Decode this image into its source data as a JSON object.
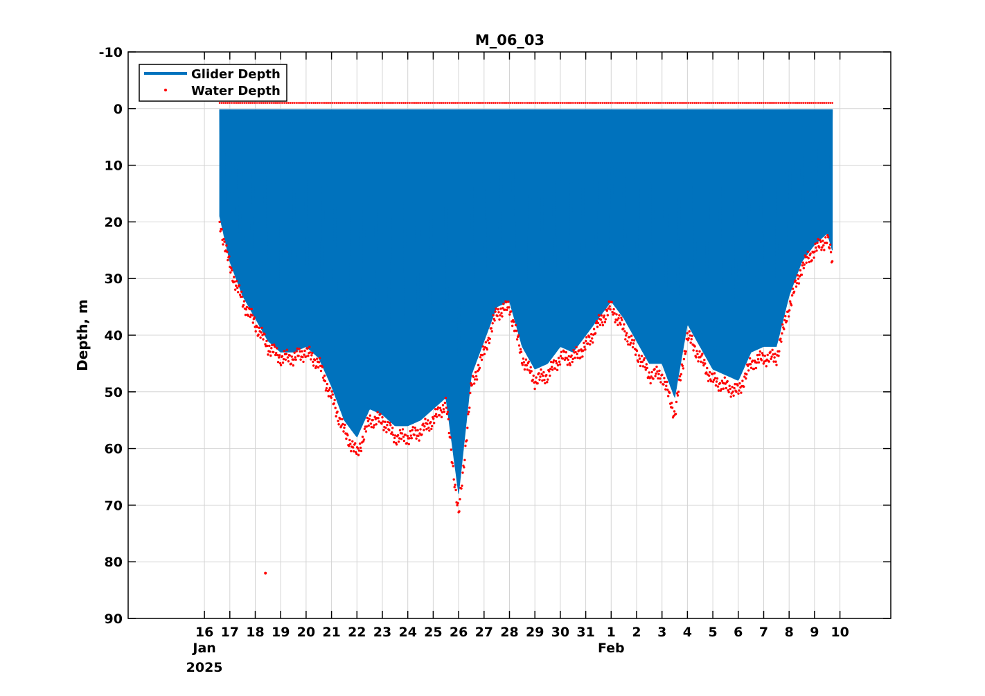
{
  "chart_data": {
    "type": "line",
    "title": "M_06_03",
    "ylabel": "Depth, m",
    "xlabel": "",
    "y_reversed": true,
    "ylim": [
      -10,
      90
    ],
    "yticks": [
      -10,
      0,
      10,
      20,
      30,
      40,
      50,
      60,
      70,
      80,
      90
    ],
    "xlim": [
      "2025-01-13",
      "2025-02-12"
    ],
    "xtick_labels": [
      "16",
      "17",
      "18",
      "19",
      "20",
      "21",
      "22",
      "23",
      "24",
      "25",
      "26",
      "27",
      "28",
      "29",
      "30",
      "31",
      "1",
      "2",
      "3",
      "4",
      "5",
      "6",
      "7",
      "8",
      "9",
      "10"
    ],
    "month_labels": [
      {
        "label": "Jan",
        "year": "2025",
        "date": "2025-01-16"
      },
      {
        "label": "Feb",
        "date": "2025-02-01"
      }
    ],
    "grid": true,
    "legend_position": "top-left",
    "colors": {
      "glider": "#0072bd",
      "water": "#ff0000"
    },
    "series": [
      {
        "name": "Glider Depth",
        "style": "filled-yo-profiles",
        "dates": [
          "2025-01-16.6",
          "2025-01-17.0",
          "2025-01-17.5",
          "2025-01-18.0",
          "2025-01-18.5",
          "2025-01-19.0",
          "2025-01-19.5",
          "2025-01-20.0",
          "2025-01-20.5",
          "2025-01-21.0",
          "2025-01-21.5",
          "2025-01-22.0",
          "2025-01-22.5",
          "2025-01-23.0",
          "2025-01-23.5",
          "2025-01-24.0",
          "2025-01-24.5",
          "2025-01-25.0",
          "2025-01-25.5",
          "2025-01-26.0",
          "2025-01-26.5",
          "2025-01-27.0",
          "2025-01-27.5",
          "2025-01-28.0",
          "2025-01-28.5",
          "2025-01-29.0",
          "2025-01-29.5",
          "2025-01-30.0",
          "2025-01-30.5",
          "2025-01-31.0",
          "2025-01-31.5",
          "2025-02-01.0",
          "2025-02-01.5",
          "2025-02-02.0",
          "2025-02-02.5",
          "2025-02-03.0",
          "2025-02-03.5",
          "2025-02-04.0",
          "2025-02-04.5",
          "2025-02-05.0",
          "2025-02-05.5",
          "2025-02-06.0",
          "2025-02-06.5",
          "2025-02-07.0",
          "2025-02-07.5",
          "2025-02-08.0",
          "2025-02-08.5",
          "2025-02-09.0",
          "2025-02-09.5",
          "2025-02-09.7"
        ],
        "min_depth": 0.2,
        "max_depth": [
          19,
          27,
          33,
          37,
          41,
          43,
          43,
          42,
          44,
          49,
          55,
          58,
          53,
          54,
          56,
          56,
          55,
          53,
          51,
          68,
          47,
          41,
          35,
          34,
          42,
          46,
          45,
          42,
          43,
          40,
          37,
          34,
          37,
          41,
          45,
          45,
          51,
          38,
          42,
          46,
          47,
          48,
          43,
          42,
          42,
          33,
          27,
          24,
          22,
          25
        ]
      },
      {
        "name": "Water Depth",
        "style": "points",
        "dates": [
          "2025-01-16.6",
          "2025-01-17.0",
          "2025-01-17.5",
          "2025-01-18.0",
          "2025-01-18.5",
          "2025-01-19.0",
          "2025-01-19.5",
          "2025-01-20.0",
          "2025-01-20.5",
          "2025-01-21.0",
          "2025-01-21.5",
          "2025-01-22.0",
          "2025-01-22.5",
          "2025-01-23.0",
          "2025-01-23.5",
          "2025-01-24.0",
          "2025-01-24.5",
          "2025-01-25.0",
          "2025-01-25.5",
          "2025-01-26.0",
          "2025-01-26.5",
          "2025-01-27.0",
          "2025-01-27.5",
          "2025-01-28.0",
          "2025-01-28.5",
          "2025-01-29.0",
          "2025-01-29.5",
          "2025-01-30.0",
          "2025-01-30.5",
          "2025-01-31.0",
          "2025-01-31.5",
          "2025-02-01.0",
          "2025-02-01.5",
          "2025-02-02.0",
          "2025-02-02.5",
          "2025-02-03.0",
          "2025-02-03.5",
          "2025-02-04.0",
          "2025-02-04.5",
          "2025-02-05.0",
          "2025-02-05.5",
          "2025-02-06.0",
          "2025-02-06.5",
          "2025-02-07.0",
          "2025-02-07.5",
          "2025-02-08.0",
          "2025-02-08.5",
          "2025-02-09.0",
          "2025-02-09.5",
          "2025-02-09.7"
        ],
        "values": [
          20,
          28,
          34,
          38,
          42,
          44,
          44,
          43,
          45,
          51,
          57,
          61,
          55,
          55,
          58,
          58,
          57,
          55,
          52,
          72,
          49,
          43,
          36,
          35,
          44,
          48,
          47,
          44,
          44,
          42,
          38,
          35,
          39,
          43,
          47,
          47,
          54,
          40,
          44,
          48,
          49,
          50,
          45,
          44,
          44,
          35,
          28,
          25,
          23,
          27
        ],
        "surface_value": -1,
        "outliers": [
          {
            "date": "2025-01-18.4",
            "value": 82
          }
        ]
      }
    ]
  }
}
